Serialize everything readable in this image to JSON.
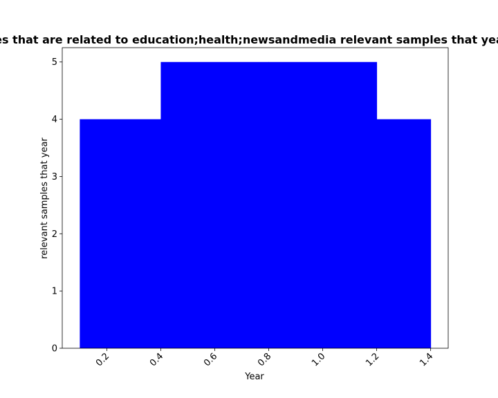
{
  "chart_data": {
    "type": "bar",
    "title": "Number of samples that are related to education;health;newsandmedia relevant samples that year in private cloud",
    "xlabel": "Year",
    "ylabel": "relevant samples that year",
    "bars": [
      {
        "x_start": 0.1,
        "x_end": 0.4,
        "value": 4
      },
      {
        "x_start": 0.4,
        "x_end": 0.8,
        "value": 5
      },
      {
        "x_start": 0.8,
        "x_end": 1.2,
        "value": 5
      },
      {
        "x_start": 1.2,
        "x_end": 1.4,
        "value": 4
      }
    ],
    "bar_color": "#0000ff",
    "xlim": [
      0.035,
      1.465
    ],
    "ylim": [
      0,
      5.25
    ],
    "xticks": [
      0.2,
      0.4,
      0.6,
      0.8,
      1.0,
      1.2,
      1.4
    ],
    "xtick_labels": [
      "0.2",
      "0.4",
      "0.6",
      "0.8",
      "1.0",
      "1.2",
      "1.4"
    ],
    "yticks": [
      0,
      1,
      2,
      3,
      4,
      5
    ],
    "ytick_labels": [
      "0",
      "1",
      "2",
      "3",
      "4",
      "5"
    ],
    "xtick_rotation": 45,
    "grid": false,
    "legend": false
  }
}
